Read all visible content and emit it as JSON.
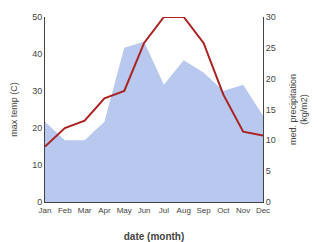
{
  "chart_data": {
    "type": "line",
    "categories": [
      "Jan",
      "Feb",
      "Mar",
      "Apr",
      "May",
      "Jun",
      "Jul",
      "Aug",
      "Sep",
      "Oct",
      "Nov",
      "Dec"
    ],
    "xlabel": "date (month)",
    "ylabel": "max temp (C)",
    "y2label": "med. precipitation\n(kg/m2)",
    "ylim": [
      0,
      50
    ],
    "yticks": [
      0,
      10,
      20,
      30,
      40,
      50
    ],
    "y2lim": [
      0,
      30
    ],
    "y2ticks": [
      0,
      5,
      10,
      15,
      20,
      25,
      30
    ],
    "grid": false,
    "series": [
      {
        "type": "area",
        "axis": "y2",
        "color": "#b8c8ee",
        "values": [
          13,
          10,
          10,
          13,
          25,
          26,
          19,
          23,
          21,
          18,
          19,
          14
        ]
      },
      {
        "type": "line",
        "color": "#aa2222",
        "values": [
          15,
          20,
          22,
          28,
          30,
          43,
          50,
          50,
          43,
          29,
          19,
          18
        ]
      }
    ]
  }
}
